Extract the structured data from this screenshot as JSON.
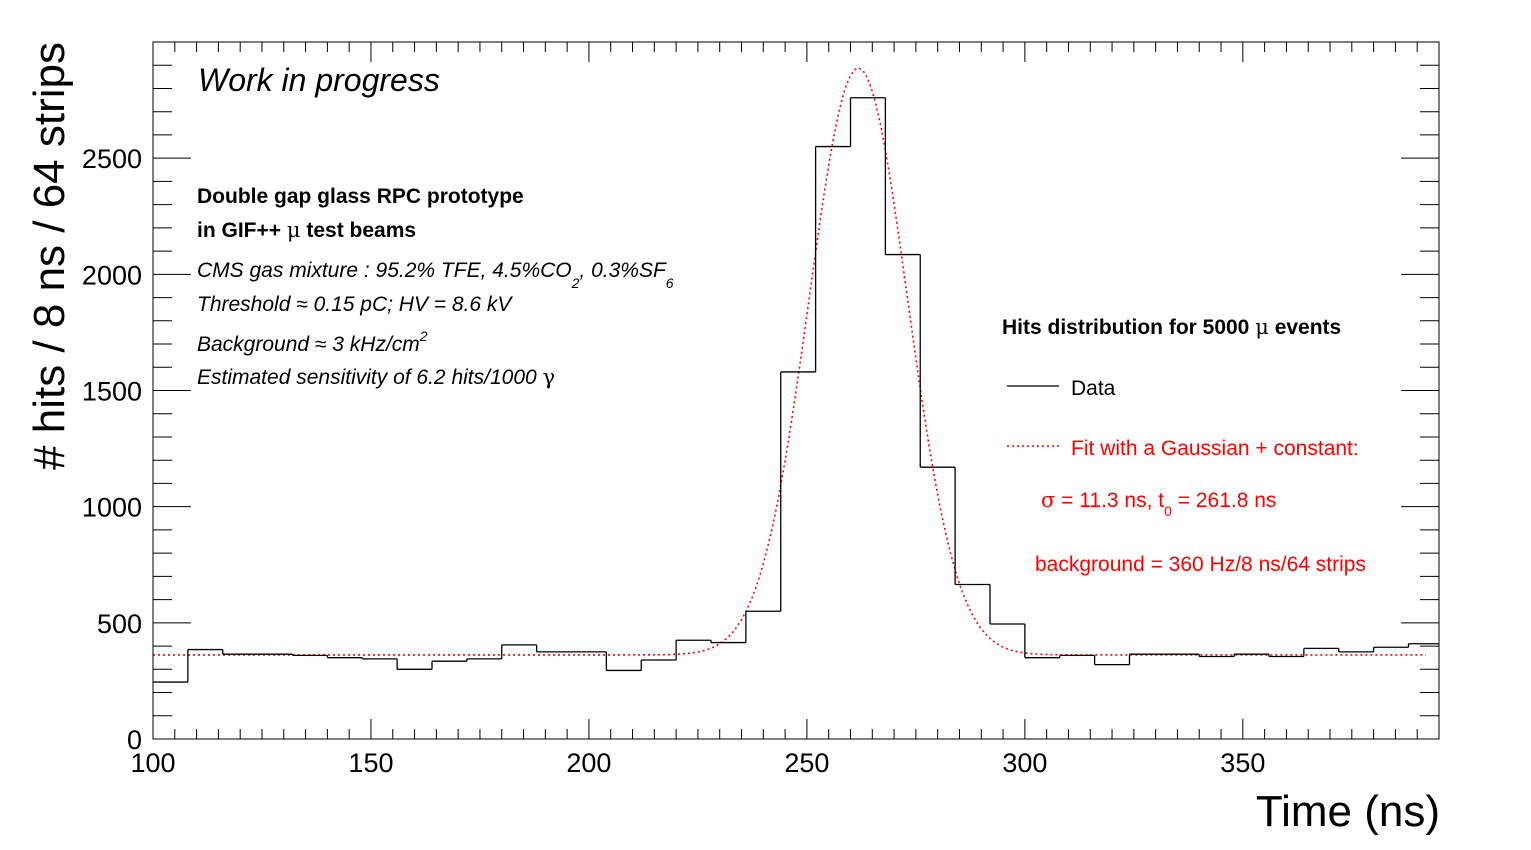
{
  "chart_data": {
    "type": "histogram",
    "xlabel": "Time (ns)",
    "ylabel": "# hits / 8 ns / 64 strips",
    "xlim": [
      100,
      395
    ],
    "ylim": [
      0,
      3000
    ],
    "x_ticks": [
      100,
      150,
      200,
      250,
      300,
      350
    ],
    "x_tick_labels": [
      "100",
      "150",
      "200",
      "250",
      "300",
      "350"
    ],
    "y_ticks": [
      0,
      500,
      1000,
      1500,
      2000,
      2500
    ],
    "y_tick_labels": [
      "0",
      "500",
      "1000",
      "1500",
      "2000",
      "2500"
    ],
    "grid": false,
    "bin_width": 8,
    "bin_start": 100,
    "series": [
      {
        "name": "Data",
        "style": "histogram-step",
        "color": "#000000",
        "values": [
          245,
          385,
          365,
          365,
          360,
          350,
          345,
          300,
          335,
          345,
          405,
          375,
          375,
          295,
          340,
          425,
          415,
          550,
          1580,
          2550,
          2760,
          2085,
          1170,
          665,
          495,
          350,
          360,
          320,
          365,
          365,
          355,
          365,
          355,
          390,
          375,
          395,
          410
        ]
      },
      {
        "name": "Fit with a Gaussian + constant:",
        "style": "dotted-line",
        "color": "#ff0000",
        "model": "gaussian+constant",
        "sigma": 11.3,
        "mean": 261.8,
        "amplitude": 2525,
        "constant": 362
      }
    ],
    "annotations": {
      "work_in_progress": "Work in progress",
      "title_line1": "Double gap glass RPC prototype",
      "title_line2_pre": "in GIF++ ",
      "title_line2_mu": "μ",
      "title_line2_post": " test beams",
      "gas_pre": "CMS gas mixture : 95.2% TFE, 4.5%CO",
      "gas_sub1": "2",
      "gas_mid": ", 0.3%SF",
      "gas_sub2": "6",
      "threshold": "Threshold ≈ 0.15 pC; HV = 8.6 kV",
      "background_pre": "Background ≈ 3 kHz/cm",
      "background_sup": "2",
      "sensitivity_pre": "Estimated sensitivity of 6.2 hits/1000 ",
      "sensitivity_gamma": "γ"
    },
    "legend": {
      "placement": "right",
      "header_pre": "Hits distribution for 5000 ",
      "header_mu": "μ",
      "header_post": " events",
      "data_label": "Data",
      "fit_label": "Fit with a Gaussian + constant:",
      "fit_line2_sigma": "σ",
      "fit_line2_mid": " = 11.3 ns, t",
      "fit_line2_sub": "0",
      "fit_line2_post": " = 261.8 ns",
      "fit_line3": "background = 360 Hz/8 ns/64 strips"
    },
    "colors": {
      "data": "#000000",
      "fit": "#ff0000"
    }
  }
}
